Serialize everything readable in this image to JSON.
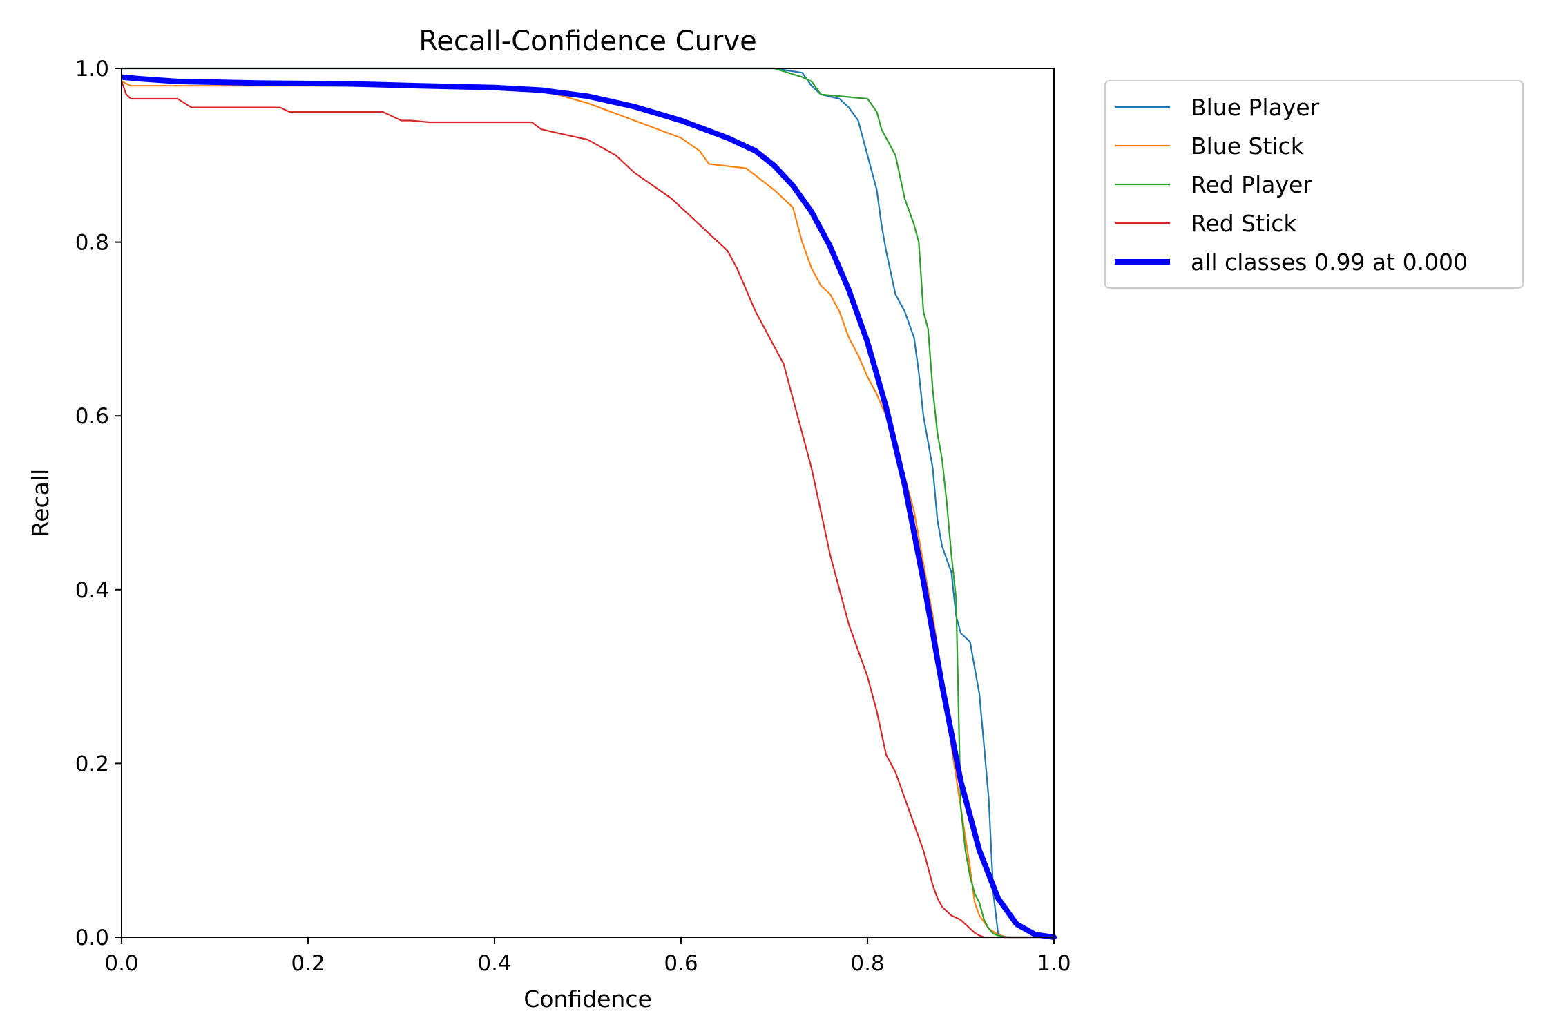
{
  "chart_data": {
    "type": "line",
    "title": "Recall-Confidence Curve",
    "xlabel": "Confidence",
    "ylabel": "Recall",
    "xlim": [
      0.0,
      1.0
    ],
    "ylim": [
      0.0,
      1.0
    ],
    "xticks": [
      "0.0",
      "0.2",
      "0.4",
      "0.6",
      "0.8",
      "1.0"
    ],
    "yticks": [
      "0.0",
      "0.2",
      "0.4",
      "0.6",
      "0.8",
      "1.0"
    ],
    "grid": false,
    "legend_placement": "outside-upper-right",
    "series": [
      {
        "name": "Blue Player",
        "color": "#1f77b4",
        "x": [
          0.0,
          0.5,
          0.7,
          0.73,
          0.74,
          0.75,
          0.77,
          0.78,
          0.79,
          0.795,
          0.8,
          0.81,
          0.815,
          0.82,
          0.83,
          0.84,
          0.85,
          0.855,
          0.86,
          0.87,
          0.875,
          0.88,
          0.89,
          0.895,
          0.9,
          0.91,
          0.92,
          0.925,
          0.93,
          0.935,
          0.94,
          0.945,
          1.0
        ],
        "y": [
          1.0,
          1.0,
          1.0,
          0.995,
          0.98,
          0.97,
          0.965,
          0.955,
          0.94,
          0.92,
          0.9,
          0.86,
          0.82,
          0.79,
          0.74,
          0.72,
          0.69,
          0.65,
          0.6,
          0.54,
          0.48,
          0.45,
          0.42,
          0.37,
          0.35,
          0.34,
          0.28,
          0.22,
          0.16,
          0.05,
          0.005,
          0.0,
          0.0
        ]
      },
      {
        "name": "Blue Stick",
        "color": "#ff7f0e",
        "x": [
          0.0,
          0.01,
          0.1,
          0.2,
          0.3,
          0.4,
          0.45,
          0.5,
          0.55,
          0.6,
          0.62,
          0.63,
          0.67,
          0.7,
          0.72,
          0.73,
          0.74,
          0.75,
          0.76,
          0.77,
          0.78,
          0.79,
          0.8,
          0.81,
          0.82,
          0.83,
          0.84,
          0.85,
          0.86,
          0.87,
          0.88,
          0.89,
          0.9,
          0.91,
          0.915,
          0.92,
          0.93,
          0.94,
          0.95,
          1.0
        ],
        "y": [
          0.985,
          0.98,
          0.98,
          0.98,
          0.98,
          0.98,
          0.975,
          0.96,
          0.94,
          0.92,
          0.905,
          0.89,
          0.885,
          0.86,
          0.84,
          0.8,
          0.77,
          0.75,
          0.74,
          0.72,
          0.69,
          0.67,
          0.645,
          0.625,
          0.6,
          0.57,
          0.53,
          0.49,
          0.43,
          0.37,
          0.3,
          0.22,
          0.15,
          0.08,
          0.04,
          0.025,
          0.01,
          0.003,
          0.0,
          0.0
        ]
      },
      {
        "name": "Red Player",
        "color": "#2ca02c",
        "x": [
          0.0,
          0.5,
          0.7,
          0.73,
          0.74,
          0.75,
          0.8,
          0.81,
          0.815,
          0.82,
          0.83,
          0.84,
          0.85,
          0.855,
          0.86,
          0.865,
          0.87,
          0.875,
          0.88,
          0.885,
          0.89,
          0.895,
          0.9,
          0.905,
          0.91,
          0.915,
          0.92,
          0.925,
          0.93,
          0.935,
          0.94,
          0.95,
          1.0
        ],
        "y": [
          1.0,
          1.0,
          1.0,
          0.99,
          0.985,
          0.97,
          0.965,
          0.95,
          0.93,
          0.92,
          0.9,
          0.85,
          0.82,
          0.8,
          0.72,
          0.7,
          0.63,
          0.58,
          0.55,
          0.5,
          0.44,
          0.39,
          0.15,
          0.1,
          0.07,
          0.05,
          0.04,
          0.02,
          0.01,
          0.004,
          0.002,
          0.0,
          0.0
        ]
      },
      {
        "name": "Red Stick",
        "color": "#d62728",
        "x": [
          0.0,
          0.005,
          0.01,
          0.06,
          0.075,
          0.17,
          0.18,
          0.28,
          0.3,
          0.31,
          0.33,
          0.44,
          0.45,
          0.47,
          0.5,
          0.53,
          0.55,
          0.57,
          0.59,
          0.6,
          0.62,
          0.64,
          0.65,
          0.66,
          0.67,
          0.68,
          0.69,
          0.7,
          0.71,
          0.72,
          0.73,
          0.74,
          0.75,
          0.76,
          0.77,
          0.78,
          0.79,
          0.8,
          0.81,
          0.82,
          0.83,
          0.84,
          0.85,
          0.86,
          0.87,
          0.875,
          0.88,
          0.885,
          0.89,
          0.9,
          0.91,
          0.915,
          0.92,
          0.925,
          0.93,
          1.0
        ],
        "y": [
          0.985,
          0.97,
          0.965,
          0.965,
          0.955,
          0.955,
          0.95,
          0.95,
          0.94,
          0.94,
          0.938,
          0.938,
          0.93,
          0.925,
          0.918,
          0.9,
          0.88,
          0.865,
          0.85,
          0.84,
          0.82,
          0.8,
          0.79,
          0.77,
          0.745,
          0.72,
          0.7,
          0.68,
          0.66,
          0.62,
          0.58,
          0.54,
          0.49,
          0.44,
          0.4,
          0.36,
          0.33,
          0.3,
          0.26,
          0.21,
          0.19,
          0.16,
          0.13,
          0.1,
          0.06,
          0.045,
          0.035,
          0.03,
          0.025,
          0.02,
          0.01,
          0.005,
          0.002,
          0.0,
          0.0,
          0.0
        ]
      },
      {
        "name": "all classes 0.99 at 0.000",
        "color": "#0000ff",
        "bold": true,
        "x": [
          0.0,
          0.02,
          0.06,
          0.15,
          0.25,
          0.32,
          0.4,
          0.45,
          0.5,
          0.55,
          0.6,
          0.65,
          0.68,
          0.7,
          0.72,
          0.74,
          0.76,
          0.78,
          0.8,
          0.82,
          0.84,
          0.86,
          0.88,
          0.9,
          0.92,
          0.94,
          0.96,
          0.98,
          1.0
        ],
        "y": [
          0.99,
          0.988,
          0.985,
          0.983,
          0.982,
          0.98,
          0.978,
          0.975,
          0.968,
          0.956,
          0.94,
          0.92,
          0.905,
          0.888,
          0.865,
          0.835,
          0.795,
          0.745,
          0.685,
          0.61,
          0.52,
          0.41,
          0.29,
          0.18,
          0.1,
          0.045,
          0.015,
          0.003,
          0.0
        ]
      }
    ]
  }
}
